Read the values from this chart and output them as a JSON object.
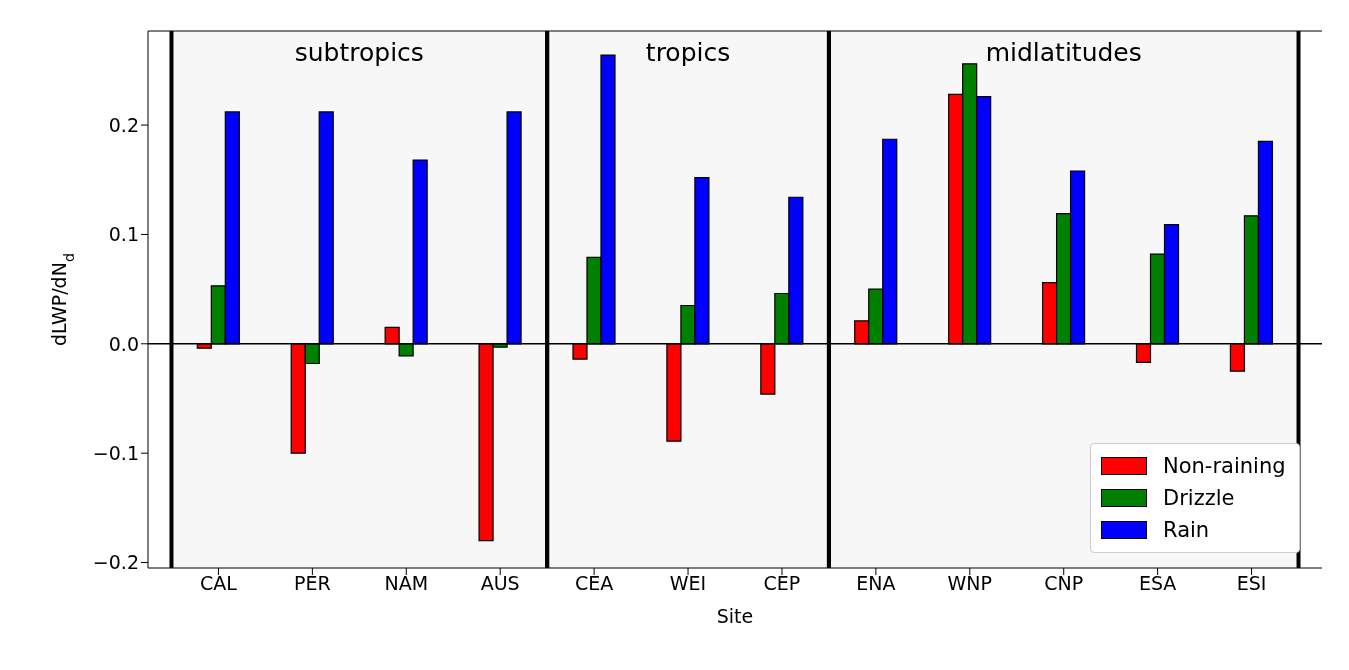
{
  "chart_data": {
    "type": "bar",
    "xlabel": "Site",
    "ylabel": "dLWP/dN$_{d}$",
    "categories": [
      "CAL",
      "PER",
      "NAM",
      "AUS",
      "CEA",
      "WEI",
      "CEP",
      "ENA",
      "WNP",
      "CNP",
      "ESA",
      "ESI"
    ],
    "series": [
      {
        "name": "Non-raining",
        "color": "#ff0000",
        "values": [
          -0.004,
          -0.1,
          0.015,
          -0.18,
          -0.014,
          -0.089,
          -0.046,
          0.021,
          0.228,
          0.056,
          -0.017,
          -0.025
        ]
      },
      {
        "name": "Drizzle",
        "color": "#008000",
        "values": [
          0.053,
          -0.018,
          -0.011,
          -0.003,
          0.079,
          0.035,
          0.046,
          0.05,
          0.256,
          0.119,
          0.082,
          0.117
        ]
      },
      {
        "name": "Rain",
        "color": "#0000ff",
        "values": [
          0.212,
          0.212,
          0.168,
          0.212,
          0.264,
          0.152,
          0.134,
          0.187,
          0.226,
          0.158,
          0.109,
          0.185
        ]
      }
    ],
    "ylim": [
      -0.205,
      0.286
    ],
    "yticks": [
      {
        "value": -0.2,
        "label": "−0.2"
      },
      {
        "value": -0.1,
        "label": "−0.1"
      },
      {
        "value": 0,
        "label": "0.0"
      },
      {
        "value": 0.1,
        "label": "0.1"
      },
      {
        "value": 0.2,
        "label": "0.2"
      }
    ],
    "ref_lines": [
      {
        "axis": "y",
        "value": 0,
        "color": "#000000"
      }
    ],
    "bands": [
      {
        "axis": "x",
        "from": "CAL",
        "to": "AUS",
        "label": "subtropics",
        "color": "#000000"
      },
      {
        "axis": "x",
        "from": "CEA",
        "to": "CEP",
        "label": "tropics",
        "color": "#000000"
      },
      {
        "axis": "x",
        "from": "ENA",
        "to": "ESI",
        "label": "midlatitudes",
        "color": "#000000"
      }
    ],
    "grid": false,
    "legend": "bottom right"
  }
}
